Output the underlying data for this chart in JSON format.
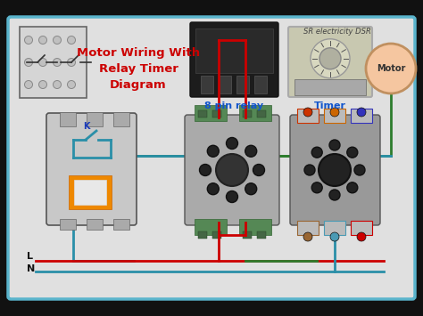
{
  "bg_color": "#111111",
  "diagram_bg": "#e0e0e0",
  "diagram_border": "#5ab4cc",
  "title_text": "Motor Wiring With\nRelay Timer\nDiagram",
  "title_color": "#cc0000",
  "title_fontsize": 9.5,
  "watermark": "SR electricity DSR",
  "watermark_color": "#444444",
  "watermark_fontsize": 6,
  "label_8pin": "8 pin relay",
  "label_timer": "Timer",
  "label_motor": "Motor",
  "label_K": "K",
  "label_L": "L",
  "label_N": "N",
  "wire_red": "#cc0000",
  "wire_teal": "#2a8fa8",
  "wire_green": "#2d7d2d",
  "motor_fill": "#f5c6a0",
  "motor_edge": "#c09060"
}
